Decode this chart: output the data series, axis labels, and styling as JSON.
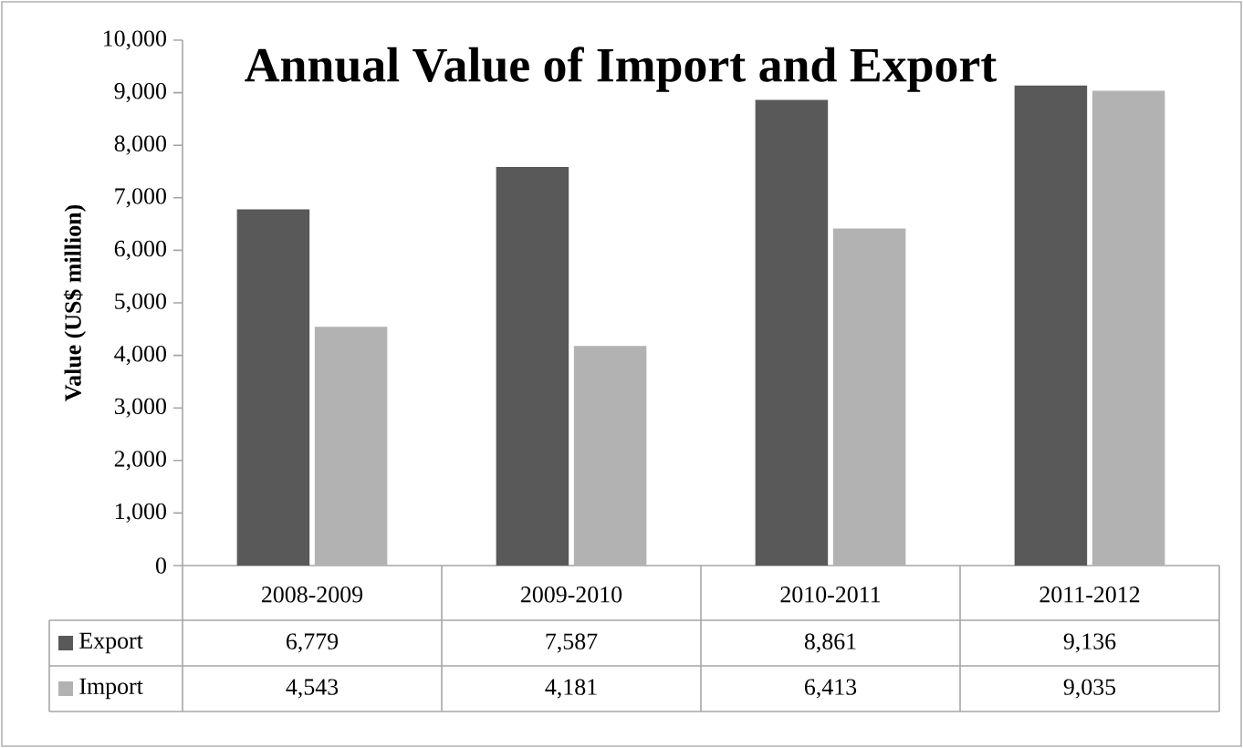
{
  "chart_data": {
    "type": "bar",
    "title": "Annual Value of Import and Export",
    "ylabel": "Value (US$ million)",
    "categories": [
      "2008-2009",
      "2009-2010",
      "2010-2011",
      "2011-2012"
    ],
    "series": [
      {
        "name": "Export",
        "color": "#595959",
        "values": [
          6779,
          7587,
          8861,
          9136
        ],
        "value_labels": [
          "6,779",
          "7,587",
          "8,861",
          "9,136"
        ]
      },
      {
        "name": "Import",
        "color": "#b2b2b2",
        "values": [
          4543,
          4181,
          6413,
          9035
        ],
        "value_labels": [
          "4,543",
          "4,181",
          "6,413",
          "9,035"
        ]
      }
    ],
    "ylim": [
      0,
      10000
    ],
    "yticks": [
      0,
      {
        "value": 1000,
        "label": "1,000"
      },
      {
        "value": 2000,
        "label": "2,000"
      },
      {
        "value": 3000,
        "label": "3,000"
      },
      {
        "value": 4000,
        "label": "4,000"
      },
      {
        "value": 5000,
        "label": "5,000"
      },
      {
        "value": 6000,
        "label": "6,000"
      },
      {
        "value": 7000,
        "label": "7,000"
      },
      {
        "value": 8000,
        "label": "8,000"
      },
      {
        "value": 9000,
        "label": "9,000"
      },
      {
        "value": 10000,
        "label": "10,000"
      }
    ],
    "grid": false,
    "legend": "bottom left"
  }
}
